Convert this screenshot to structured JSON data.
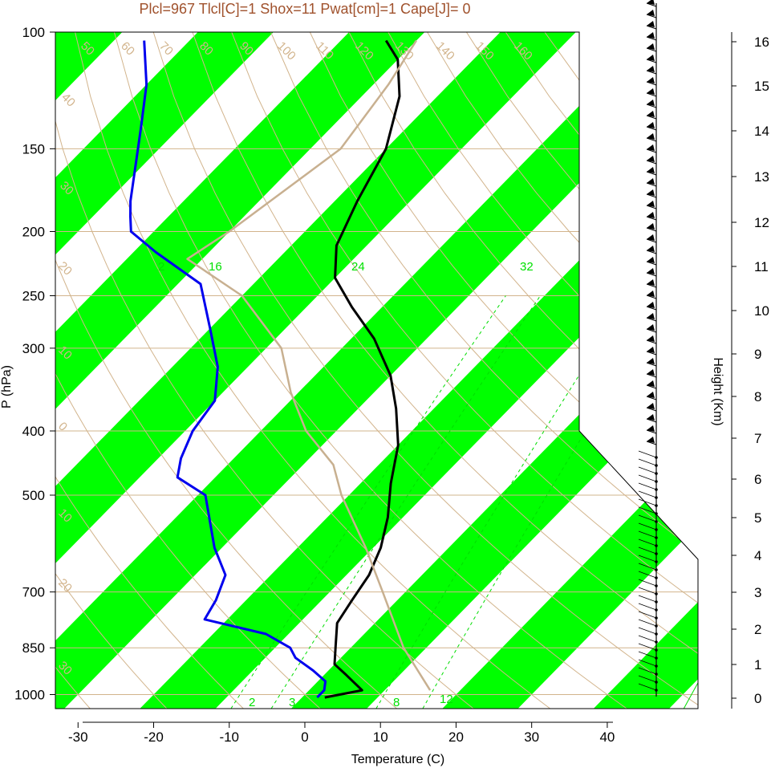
{
  "title": "Plcl=967 Tlcl[C]=1 Shox=11 Pwat[cm]=1 Cape[J]= 0",
  "chart_data": {
    "type": "line",
    "title": "Plcl=967 Tlcl[C]=1 Shox=11 Pwat[cm]=1 Cape[J]= 0",
    "xlabel": "Temperature (C)",
    "ylabel": "P (hPa)",
    "y2label": "Height (Km)",
    "xlim": [
      -33,
      52
    ],
    "ylim": [
      1050,
      100
    ],
    "y_scale": "log",
    "x_ticks": [
      "-30",
      "-20",
      "-10",
      "0",
      "10",
      "20",
      "30",
      "40"
    ],
    "y_ticks": [
      "100",
      "150",
      "200",
      "250",
      "300",
      "400",
      "500",
      "700",
      "850",
      "1000"
    ],
    "height_ticks": [
      "0",
      "1",
      "2",
      "3",
      "4",
      "5",
      "6",
      "7",
      "8",
      "9",
      "10",
      "11",
      "12",
      "13",
      "14",
      "15",
      "16"
    ],
    "colors": {
      "temperature": "#000000",
      "dewpoint": "#0000ee",
      "parcel": "#c8b090",
      "isotherm_band": "#00ff00",
      "dry_adiabat": "#d2b48c",
      "mixing_ratio": "#00dd00",
      "title": "#a0522d"
    },
    "isotherm_band_labels": [
      "30",
      "20",
      "10",
      "0",
      "10",
      "30"
    ],
    "dry_adiabat_labels": [
      "50",
      "60",
      "70",
      "80",
      "90",
      "100",
      "110",
      "120",
      "130",
      "140",
      "150",
      "160",
      "40",
      "30",
      "20",
      "10",
      "0",
      "10",
      "20",
      "30"
    ],
    "mixing_ratio_labels": [
      "2",
      "16",
      "24",
      "32",
      "2",
      "3",
      "8",
      "12"
    ],
    "series": [
      {
        "values_label": "temperature",
        "points": [
          [
            3,
            1010
          ],
          [
            7,
            985
          ],
          [
            3,
            935
          ],
          [
            0,
            900
          ],
          [
            -2,
            850
          ],
          [
            -5,
            780
          ],
          [
            -6,
            720
          ],
          [
            -7,
            660
          ],
          [
            -9,
            600
          ],
          [
            -12,
            540
          ],
          [
            -16,
            480
          ],
          [
            -20,
            420
          ],
          [
            -25,
            370
          ],
          [
            -30,
            330
          ],
          [
            -37,
            290
          ],
          [
            -44,
            260
          ],
          [
            -50,
            235
          ],
          [
            -54,
            210
          ],
          [
            -57,
            180
          ],
          [
            -60,
            150
          ],
          [
            -65,
            125
          ],
          [
            -70,
            110
          ],
          [
            -74,
            103
          ]
        ]
      },
      {
        "values_label": "dewpoint",
        "points": [
          [
            2,
            1010
          ],
          [
            2,
            985
          ],
          [
            1,
            955
          ],
          [
            -2,
            920
          ],
          [
            -6,
            880
          ],
          [
            -8,
            850
          ],
          [
            -13,
            810
          ],
          [
            -23,
            770
          ],
          [
            -24,
            720
          ],
          [
            -26,
            660
          ],
          [
            -31,
            600
          ],
          [
            -39,
            500
          ],
          [
            -45,
            470
          ],
          [
            -47,
            440
          ],
          [
            -49,
            400
          ],
          [
            -50,
            360
          ],
          [
            -54,
            320
          ],
          [
            -60,
            280
          ],
          [
            -67,
            240
          ],
          [
            -77,
            215
          ],
          [
            -83,
            200
          ],
          [
            -85,
            190
          ],
          [
            -87,
            180
          ],
          [
            -95,
            140
          ],
          [
            -100,
            120
          ],
          [
            -106,
            103
          ]
        ]
      },
      {
        "values_label": "parcel",
        "points": [
          [
            16,
            985
          ],
          [
            7,
            850
          ],
          [
            -3,
            700
          ],
          [
            -11,
            600
          ],
          [
            -21,
            500
          ],
          [
            -26,
            450
          ],
          [
            -34,
            400
          ],
          [
            -41,
            350
          ],
          [
            -48,
            300
          ],
          [
            -60,
            250
          ],
          [
            -72,
            220
          ],
          [
            -70,
            200
          ],
          [
            -66,
            150
          ],
          [
            -68,
            120
          ],
          [
            -70,
            103
          ]
        ]
      }
    ]
  }
}
